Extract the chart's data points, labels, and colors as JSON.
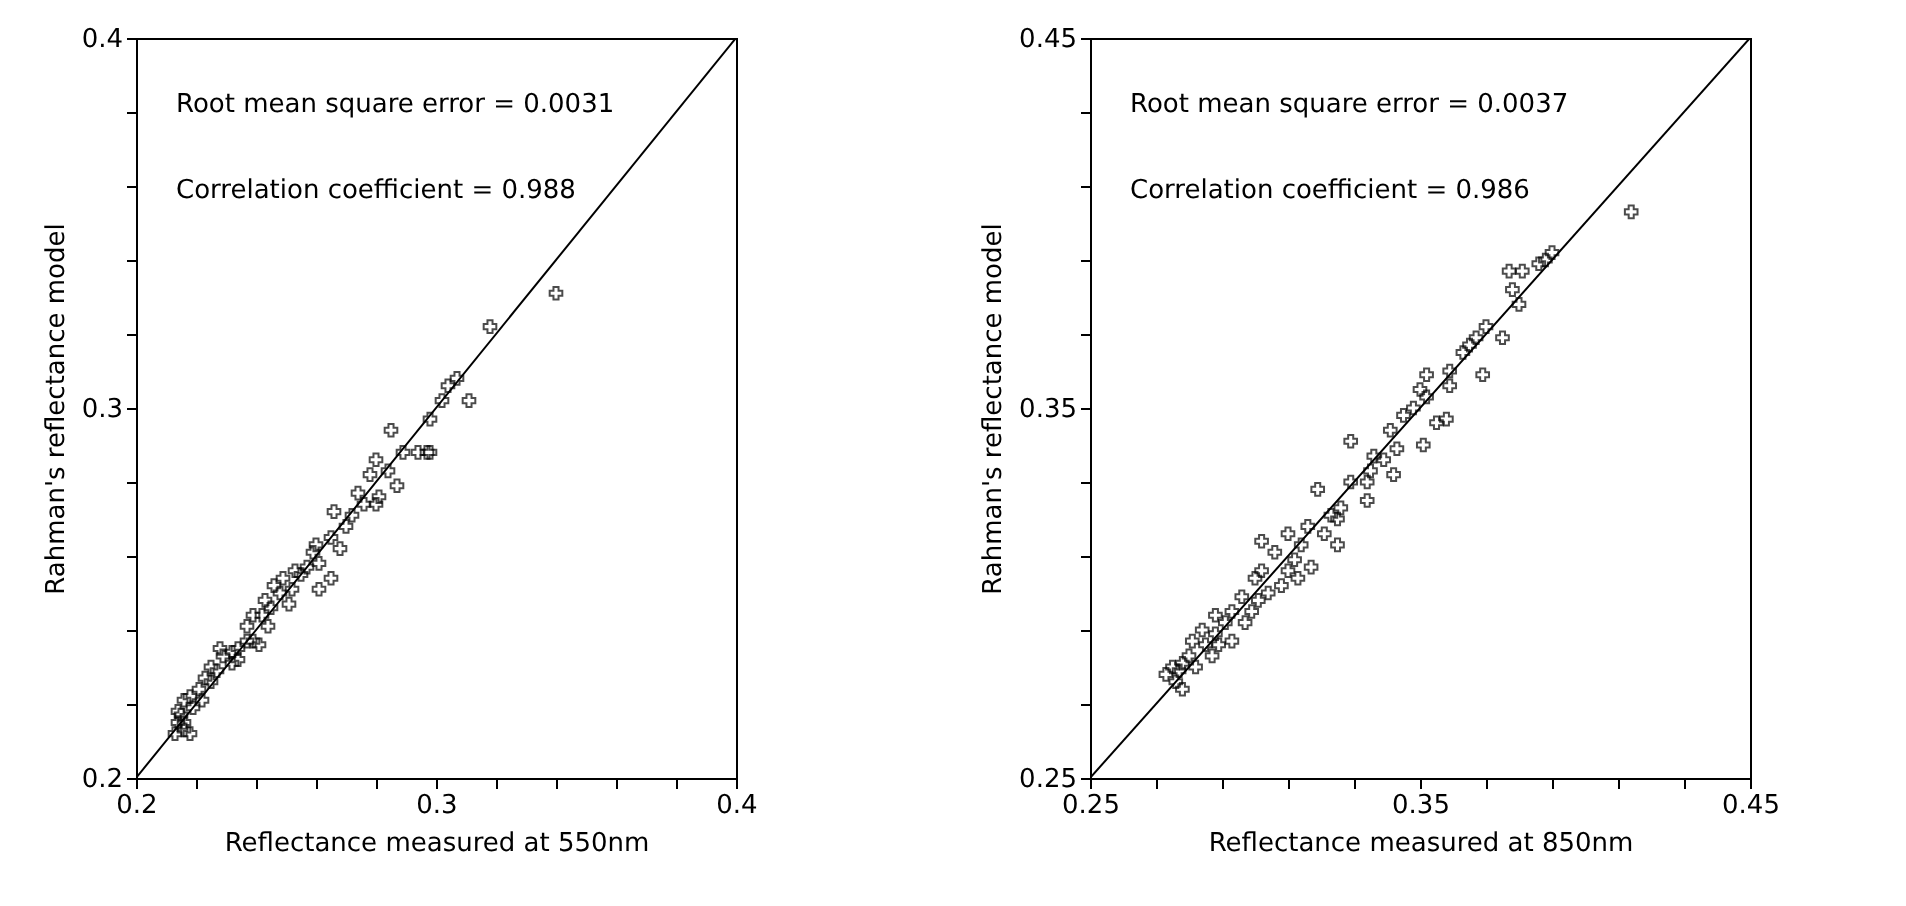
{
  "chart_data": [
    {
      "type": "scatter",
      "xlabel": "Reflectance measured at 550nm",
      "ylabel": "Rahman's reflectance model",
      "annotations": [
        "Root mean square error = 0.0031",
        "Correlation coefficient = 0.988"
      ],
      "xlim": [
        0.2,
        0.4
      ],
      "ylim": [
        0.2,
        0.4
      ],
      "xticks": [
        0.2,
        {
          "value": 0.22,
          "label": null
        },
        {
          "value": 0.24,
          "label": null
        },
        {
          "value": 0.26,
          "label": null
        },
        {
          "value": 0.28,
          "label": null
        },
        0.3,
        {
          "value": 0.32,
          "label": null
        },
        {
          "value": 0.34,
          "label": null
        },
        {
          "value": 0.36,
          "label": null
        },
        {
          "value": 0.38,
          "label": null
        },
        0.4
      ],
      "yticks": [
        0.2,
        {
          "value": 0.22,
          "label": null
        },
        {
          "value": 0.24,
          "label": null
        },
        {
          "value": 0.26,
          "label": null
        },
        {
          "value": 0.28,
          "label": null
        },
        0.3,
        {
          "value": 0.32,
          "label": null
        },
        {
          "value": 0.34,
          "label": null
        },
        {
          "value": 0.36,
          "label": null
        },
        {
          "value": 0.38,
          "label": null
        },
        0.4
      ],
      "series": [
        {
          "marker": "cross",
          "color": "#000000",
          "x": [
            0.34,
            0.318,
            0.311,
            0.307,
            0.304,
            0.302,
            0.298,
            0.297,
            0.298,
            0.294,
            0.289,
            0.285,
            0.284,
            0.287,
            0.28,
            0.278,
            0.274,
            0.28,
            0.281,
            0.266,
            0.27,
            0.268,
            0.265,
            0.26,
            0.265,
            0.261,
            0.257,
            0.255,
            0.252,
            0.249,
            0.248,
            0.251,
            0.243,
            0.242,
            0.239,
            0.244,
            0.241,
            0.237,
            0.237,
            0.234,
            0.232,
            0.229,
            0.232,
            0.227,
            0.225,
            0.223,
            0.225,
            0.221,
            0.218,
            0.216,
            0.219,
            0.215,
            0.214,
            0.216,
            0.213,
            0.216,
            0.218,
            0.246,
            0.259,
            0.272,
            0.276,
            0.239,
            0.234,
            0.228,
            0.222,
            0.214,
            0.261,
            0.253,
            0.245
          ],
          "values": [
            0.331,
            0.322,
            0.302,
            0.308,
            0.306,
            0.302,
            0.297,
            0.288,
            0.288,
            0.288,
            0.288,
            0.294,
            0.283,
            0.279,
            0.286,
            0.282,
            0.277,
            0.274,
            0.276,
            0.272,
            0.268,
            0.262,
            0.265,
            0.263,
            0.254,
            0.251,
            0.257,
            0.255,
            0.251,
            0.254,
            0.25,
            0.247,
            0.248,
            0.244,
            0.244,
            0.241,
            0.236,
            0.241,
            0.237,
            0.235,
            0.234,
            0.233,
            0.231,
            0.229,
            0.23,
            0.227,
            0.226,
            0.224,
            0.222,
            0.221,
            0.219,
            0.217,
            0.215,
            0.215,
            0.212,
            0.213,
            0.212,
            0.252,
            0.261,
            0.271,
            0.274,
            0.237,
            0.232,
            0.235,
            0.221,
            0.218,
            0.258,
            0.256,
            0.246
          ]
        },
        {
          "type": "line",
          "color": "#000000",
          "x": [
            0.2,
            0.4
          ],
          "values": [
            0.2,
            0.4
          ]
        }
      ]
    },
    {
      "type": "scatter",
      "xlabel": "Reflectance measured at 850nm",
      "ylabel": "Rahman's reflectance model",
      "annotations": [
        "Root mean square error = 0.0037",
        "Correlation coefficient = 0.986"
      ],
      "xlim": [
        0.25,
        0.45
      ],
      "ylim": [
        0.25,
        0.45
      ],
      "xticks": [
        0.25,
        {
          "value": 0.27,
          "label": null
        },
        {
          "value": 0.29,
          "label": null
        },
        {
          "value": 0.31,
          "label": null
        },
        {
          "value": 0.33,
          "label": null
        },
        0.35,
        {
          "value": 0.37,
          "label": null
        },
        {
          "value": 0.39,
          "label": null
        },
        {
          "value": 0.41,
          "label": null
        },
        {
          "value": 0.43,
          "label": null
        },
        0.45
      ],
      "yticks": [
        0.25,
        {
          "value": 0.27,
          "label": null
        },
        {
          "value": 0.29,
          "label": null
        },
        {
          "value": 0.31,
          "label": null
        },
        {
          "value": 0.33,
          "label": null
        },
        0.35,
        {
          "value": 0.37,
          "label": null
        },
        {
          "value": 0.39,
          "label": null
        },
        {
          "value": 0.41,
          "label": null
        },
        {
          "value": 0.43,
          "label": null
        },
        0.45
      ],
      "series": [
        {
          "marker": "cross",
          "color": "#000000",
          "x": [
            0.414,
            0.39,
            0.388,
            0.386,
            0.381,
            0.38,
            0.378,
            0.377,
            0.375,
            0.369,
            0.367,
            0.365,
            0.359,
            0.359,
            0.358,
            0.355,
            0.351,
            0.352,
            0.35,
            0.348,
            0.345,
            0.343,
            0.342,
            0.339,
            0.336,
            0.335,
            0.329,
            0.334,
            0.329,
            0.326,
            0.325,
            0.323,
            0.319,
            0.321,
            0.316,
            0.314,
            0.312,
            0.317,
            0.31,
            0.302,
            0.306,
            0.308,
            0.304,
            0.3,
            0.296,
            0.299,
            0.293,
            0.291,
            0.288,
            0.288,
            0.284,
            0.285,
            0.281,
            0.28,
            0.278,
            0.277,
            0.276,
            0.278,
            0.282,
            0.289,
            0.297,
            0.302,
            0.31,
            0.325,
            0.334,
            0.341,
            0.352,
            0.363,
            0.37,
            0.273,
            0.275,
            0.287,
            0.293,
            0.301,
            0.313
          ],
          "values": [
            0.403,
            0.392,
            0.39,
            0.389,
            0.387,
            0.378,
            0.382,
            0.387,
            0.369,
            0.359,
            0.369,
            0.367,
            0.36,
            0.356,
            0.347,
            0.346,
            0.34,
            0.359,
            0.355,
            0.35,
            0.348,
            0.339,
            0.332,
            0.336,
            0.337,
            0.333,
            0.341,
            0.325,
            0.33,
            0.323,
            0.313,
            0.321,
            0.328,
            0.316,
            0.318,
            0.313,
            0.309,
            0.307,
            0.306,
            0.314,
            0.311,
            0.302,
            0.3,
            0.304,
            0.299,
            0.295,
            0.295,
            0.292,
            0.294,
            0.289,
            0.29,
            0.286,
            0.287,
            0.283,
            0.281,
            0.279,
            0.276,
            0.274,
            0.28,
            0.286,
            0.292,
            0.306,
            0.316,
            0.32,
            0.33,
            0.344,
            0.353,
            0.365,
            0.372,
            0.278,
            0.28,
            0.283,
            0.287,
            0.298,
            0.304
          ]
        },
        {
          "type": "line",
          "color": "#000000",
          "x": [
            0.25,
            0.45
          ],
          "values": [
            0.25,
            0.45
          ]
        }
      ]
    }
  ]
}
